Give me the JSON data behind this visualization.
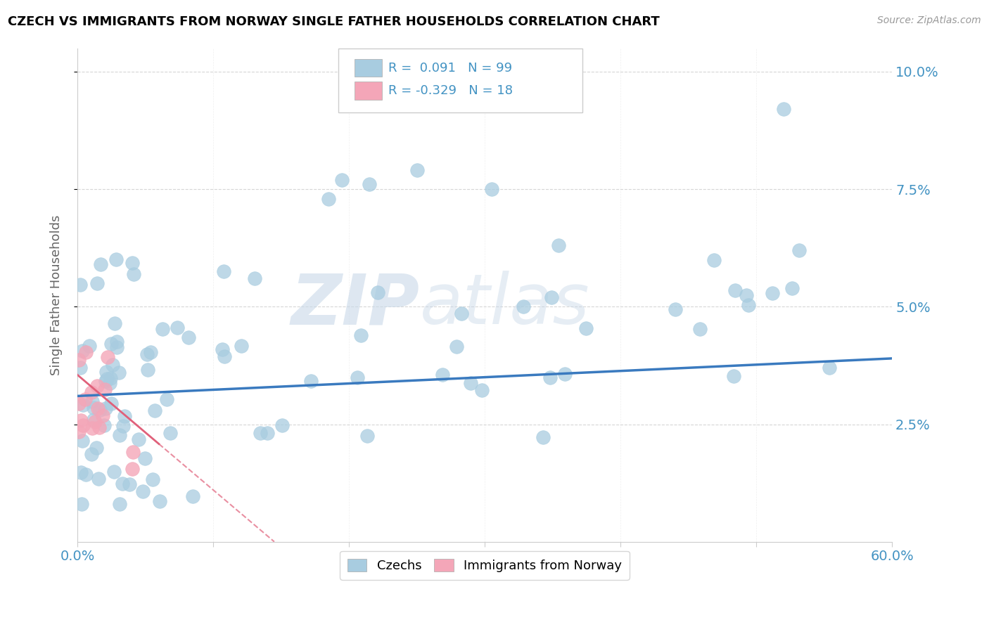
{
  "title": "CZECH VS IMMIGRANTS FROM NORWAY SINGLE FATHER HOUSEHOLDS CORRELATION CHART",
  "source": "Source: ZipAtlas.com",
  "ylabel": "Single Father Households",
  "xmin": 0.0,
  "xmax": 0.6,
  "ymin": 0.0,
  "ymax": 0.105,
  "yticks": [
    0.025,
    0.05,
    0.075,
    0.1
  ],
  "ytick_labels": [
    "2.5%",
    "5.0%",
    "7.5%",
    "10.0%"
  ],
  "czech_color": "#a8cce0",
  "norway_color": "#f4a6b8",
  "czech_line_color": "#3a7abf",
  "norway_line_color": "#e0607a",
  "czech_trend_x0": 0.0,
  "czech_trend_x1": 0.6,
  "czech_trend_y0": 0.031,
  "czech_trend_y1": 0.039,
  "norway_trend_x0": 0.0,
  "norway_trend_x1": 0.145,
  "norway_trend_y0": 0.0355,
  "norway_trend_y1": 0.0,
  "watermark_zip": "ZIP",
  "watermark_atlas": "atlas"
}
